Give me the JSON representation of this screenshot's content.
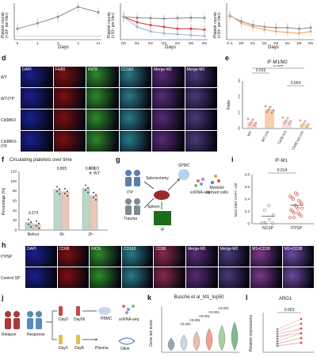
{
  "panels": {
    "top": {
      "left_ylabel": "Platelet counts\n(×10⁹ per liter)",
      "left_xticks": [
        "0",
        "1",
        "2",
        "3",
        "14"
      ],
      "left_xlabel": "Days",
      "mid_ylabel": "Platelet counts\n(×10⁹ per liter)",
      "mid_xticks": [
        "D0",
        "D1",
        "D2",
        "D3",
        "D4",
        "D5",
        "D6"
      ],
      "mid_xlabel": "Days",
      "right_ylabel": "Platelet counts\n(×10⁹ per liter)",
      "right_xticks": [
        "0–1",
        "D0",
        "D1",
        "D2",
        "D3",
        "D4",
        "D5",
        "D6"
      ],
      "right_xlabel": "Days"
    },
    "d": {
      "label": "d",
      "columns": [
        "DAPI",
        "F4/80",
        "iNOS",
        "CD163",
        "Merge-M1",
        "Merge-M2"
      ],
      "rows": [
        "WT",
        "WT-ITP",
        "Cd38KO",
        "Cd38KO-ITP"
      ]
    },
    "e": {
      "label": "e",
      "title": "IF-M1/M2",
      "ylabel": "Ratio",
      "yticks": [
        "0",
        "1",
        "2",
        "3"
      ],
      "categories": [
        "WT",
        "WT-ITP",
        "Cd38 KO",
        "Cd38 KO-ITP"
      ],
      "pvalues": [
        "0.015",
        "0.004",
        "0.004"
      ]
    },
    "f": {
      "label": "f",
      "title": "Circulating platelets over time",
      "ylabel": "Percentage (%)",
      "yticks": [
        "0",
        "20",
        "40",
        "60",
        "80",
        "100",
        "120"
      ],
      "categories": [
        "Before",
        "0h",
        "2h"
      ],
      "legend": [
        "KO",
        "WT"
      ],
      "pvalues": [
        "0.273",
        "0.805",
        "0.059"
      ]
    },
    "g": {
      "label": "g",
      "items": [
        "ITP",
        "Trauma",
        "Splenectomy",
        "Spleen",
        "SPMC",
        "scRNA-seq",
        "Myeloid-derived cells",
        "IF"
      ]
    },
    "i": {
      "label": "i",
      "title": "IF-M1",
      "ylabel": "M1/CD68⁺DAPI⁺ cell",
      "yticks": [
        "0",
        "0.2",
        "0.4",
        "0.6",
        "0.8"
      ],
      "categories": [
        "NCSP",
        "ITPSP"
      ],
      "pvalue": "0.014"
    },
    "h": {
      "label": "h",
      "columns": [
        "DAPI",
        "CD68",
        "iNOS",
        "CD163",
        "CD38",
        "Merge-M1",
        "Merge-M2",
        "M1+CD38",
        "M2+CD38"
      ],
      "rows": [
        "ITPSP",
        "Control SP"
      ]
    },
    "j": {
      "label": "j",
      "items": [
        "Relapse",
        "Response",
        "Day0",
        "Day56",
        "PBMC",
        "scRNA-seq",
        "Day0",
        "Day8",
        "Plasma",
        "Olink"
      ]
    },
    "k": {
      "label": "k",
      "title": "Busche et al_M1_top50",
      "ylabel": "Gene set score",
      "pvalues": [
        "<0.001",
        "<0.001",
        "<0.001",
        "<0.001",
        "<0.001"
      ]
    },
    "l": {
      "label": "l",
      "title": "ARG1",
      "ylabel": "Relative expressions",
      "pvalue": "0.003"
    }
  },
  "colors": {
    "gray_series": "#8a8a8a",
    "red_series": "#d9362b",
    "blue_series": "#8fb4dc",
    "orange_series": "#f0a36b",
    "dapi": "#1a1f8c",
    "red_stain": "#7a1010",
    "green_stain": "#2e8a2a",
    "cyan_stain": "#2a7a88",
    "merge": "#5a2a78"
  },
  "chart_data": [
    {
      "type": "line",
      "title": "",
      "x": [
        "0",
        "1",
        "2",
        "3",
        "14"
      ],
      "series": [
        {
          "values": [
            600,
            900,
            1250,
            1800,
            1500
          ]
        }
      ],
      "ylabel": "Platelet counts (×10⁹ per liter)",
      "xlabel": "Days"
    },
    {
      "type": "line",
      "title": "",
      "x": [
        "D0",
        "D1",
        "D2",
        "D3",
        "D4",
        "D5",
        "D6"
      ],
      "series": [
        {
          "values": [
            1250,
            1200,
            1180,
            1150,
            1180,
            1200,
            1190
          ]
        },
        {
          "values": [
            1250,
            950,
            800,
            700,
            600,
            600,
            550
          ]
        },
        {
          "values": [
            1250,
            700,
            450,
            350,
            300,
            250,
            200
          ]
        }
      ],
      "ylabel": "Platelet counts (×10⁹ per liter)",
      "xlabel": "Days"
    },
    {
      "type": "line",
      "title": "",
      "x": [
        "0–1",
        "D0",
        "D1",
        "D2",
        "D3",
        "D4",
        "D5",
        "D6"
      ],
      "series": [
        {
          "values": [
            1300,
            1000,
            800,
            700,
            650,
            650,
            600,
            650
          ]
        },
        {
          "values": [
            1350,
            900,
            700,
            550,
            450,
            400,
            350,
            450
          ]
        }
      ],
      "ylabel": "Platelet counts (×10⁹ per liter)",
      "xlabel": "Days"
    },
    {
      "type": "bar",
      "title": "IF-M1/M2",
      "categories": [
        "WT",
        "WT-ITP",
        "Cd38 KO",
        "Cd38 KO-ITP"
      ],
      "values": [
        0.4,
        1.2,
        0.5,
        0.3
      ],
      "ylabel": "Ratio",
      "ylim": [
        0,
        3
      ]
    },
    {
      "type": "bar",
      "title": "Circulating platelets over time",
      "categories": [
        "Before",
        "0h",
        "2h"
      ],
      "series": [
        {
          "name": "KO",
          "values": [
            15,
            82,
            85
          ]
        },
        {
          "name": "WT",
          "values": [
            12,
            78,
            70
          ]
        }
      ],
      "ylabel": "Percentage (%)",
      "ylim": [
        0,
        120
      ]
    },
    {
      "type": "scatter",
      "title": "IF-M1",
      "categories": [
        "NCSP",
        "ITPSP"
      ],
      "values": [
        0.12,
        0.3
      ],
      "ylabel": "M1/CD68⁺DAPI⁺ cell",
      "ylim": [
        0,
        0.8
      ]
    }
  ]
}
